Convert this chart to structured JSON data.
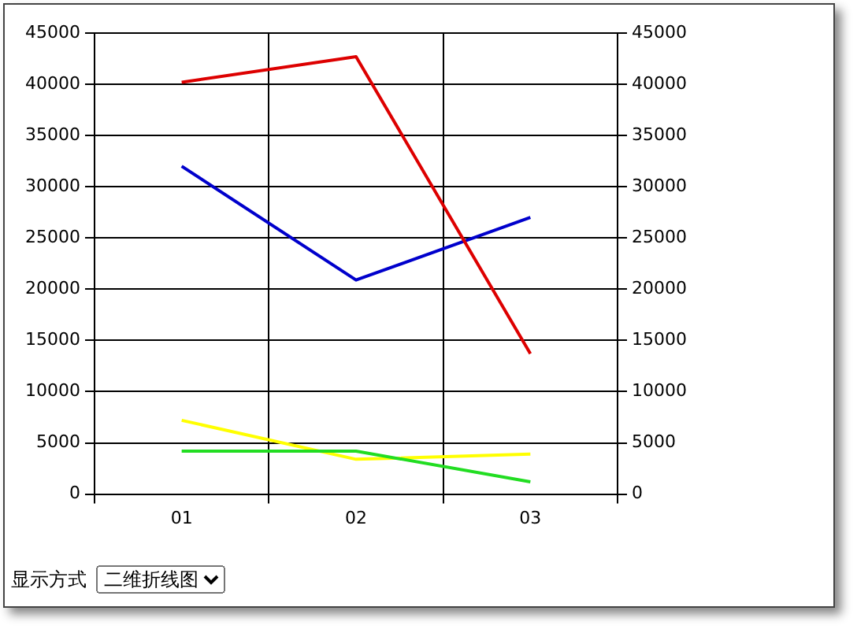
{
  "chart_data": {
    "type": "line",
    "categories": [
      "01",
      "02",
      "03"
    ],
    "series": [
      {
        "color": "#dd0000",
        "values": [
          40200,
          42700,
          13700
        ]
      },
      {
        "color": "#22dd22",
        "values": [
          4200,
          4200,
          1200
        ]
      },
      {
        "color": "#0000cc",
        "values": [
          32000,
          20900,
          27000
        ]
      },
      {
        "color": "#ffff00",
        "values": [
          7200,
          3400,
          3900
        ]
      }
    ],
    "ylim": [
      0,
      45000
    ],
    "yticks": [
      0,
      5000,
      10000,
      15000,
      20000,
      25000,
      30000,
      35000,
      40000,
      45000
    ],
    "y2lim": [
      0,
      45000
    ],
    "y2ticks": [
      0,
      5000,
      10000,
      15000,
      20000,
      25000,
      30000,
      35000,
      40000,
      45000
    ],
    "grid": true,
    "marker": "none",
    "line_style": "solid",
    "annotations": [
      "显示方式",
      "二维折线图"
    ]
  }
}
